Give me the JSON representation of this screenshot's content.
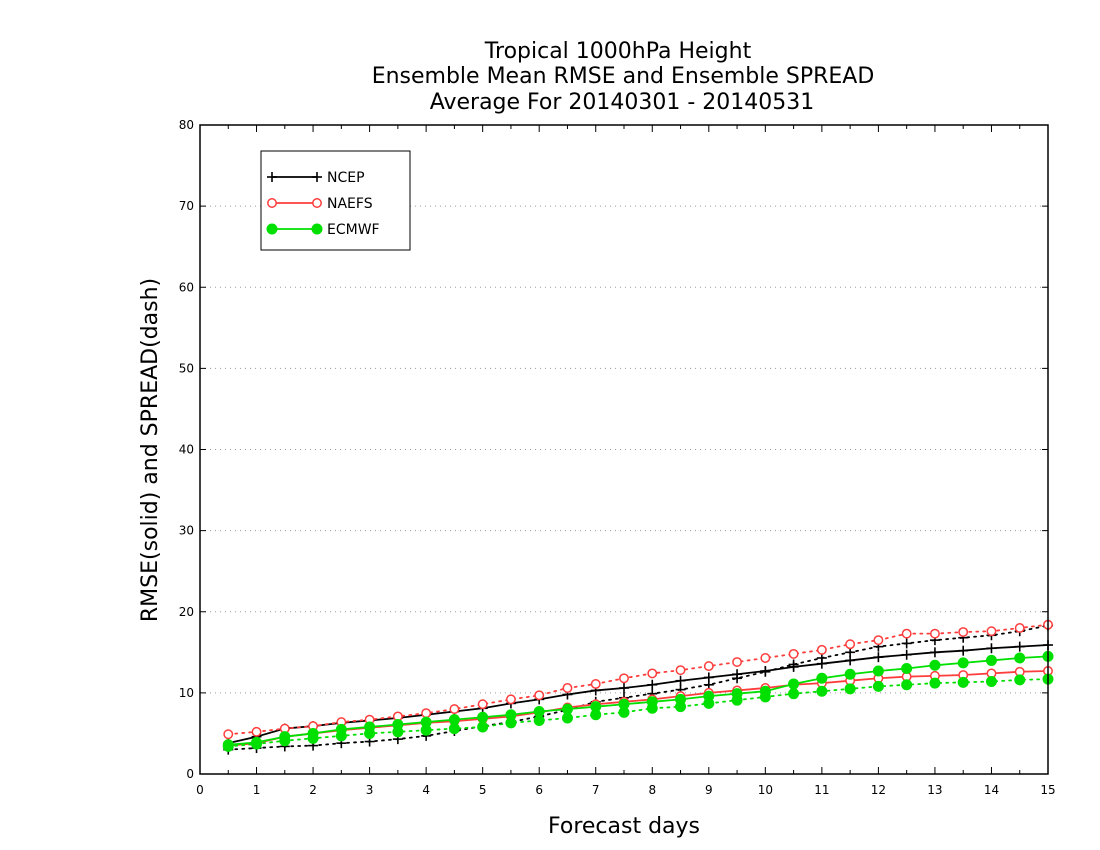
{
  "chart_data": {
    "type": "line",
    "title": [
      "Tropical 1000hPa Height",
      "Ensemble Mean RMSE and Ensemble SPREAD",
      "Average For 20140301 - 20140531"
    ],
    "xlabel": "Forecast days",
    "ylabel": "RMSE(solid) and SPREAD(dash)",
    "xlim": [
      0,
      15
    ],
    "ylim": [
      0,
      80
    ],
    "xticks": [
      "0",
      "1",
      "2",
      "3",
      "4",
      "5",
      "6",
      "7",
      "8",
      "9",
      "10",
      "11",
      "12",
      "13",
      "14",
      "15"
    ],
    "yticks": [
      "0",
      "10",
      "20",
      "30",
      "40",
      "50",
      "60",
      "70",
      "80"
    ],
    "grid": "horizontal dotted",
    "legend_position": "top-left",
    "x": [
      0.5,
      1,
      1.5,
      2,
      2.5,
      3,
      3.5,
      4,
      4.5,
      5,
      5.5,
      6,
      6.5,
      7,
      7.5,
      8,
      8.5,
      9,
      9.5,
      10,
      10.5,
      11,
      11.5,
      12,
      12.5,
      13,
      13.5,
      14,
      14.5,
      15
    ],
    "series": [
      {
        "name": "NCEP",
        "color": "#000000",
        "marker": "plus",
        "rmse": [
          3.8,
          4.6,
          5.6,
          5.9,
          6.3,
          6.6,
          6.9,
          7.3,
          7.7,
          8.1,
          8.7,
          9.2,
          9.8,
          10.3,
          10.6,
          11.0,
          11.5,
          11.9,
          12.3,
          12.7,
          13.2,
          13.6,
          14.0,
          14.4,
          14.7,
          15.0,
          15.2,
          15.5,
          15.7,
          15.9
        ],
        "spread": [
          3.0,
          3.2,
          3.4,
          3.5,
          3.8,
          4.0,
          4.3,
          4.7,
          5.3,
          5.9,
          6.4,
          7.1,
          7.9,
          8.9,
          9.4,
          9.9,
          10.4,
          11.0,
          11.8,
          12.6,
          13.5,
          14.3,
          15.0,
          15.7,
          16.1,
          16.5,
          16.8,
          17.1,
          17.6,
          18.3
        ]
      },
      {
        "name": "NAEFS",
        "color": "#ff3c3c",
        "marker": "open-circle",
        "rmse": [
          3.5,
          3.8,
          4.6,
          5.0,
          5.4,
          5.7,
          6.0,
          6.3,
          6.5,
          6.8,
          7.1,
          7.6,
          8.2,
          8.6,
          8.9,
          9.2,
          9.6,
          10.0,
          10.3,
          10.6,
          11.0,
          11.2,
          11.5,
          11.8,
          12.0,
          12.1,
          12.2,
          12.4,
          12.6,
          12.7
        ],
        "spread": [
          4.9,
          5.2,
          5.6,
          5.9,
          6.4,
          6.7,
          7.1,
          7.5,
          8.0,
          8.6,
          9.2,
          9.7,
          10.6,
          11.1,
          11.8,
          12.4,
          12.8,
          13.3,
          13.8,
          14.3,
          14.8,
          15.3,
          16.0,
          16.5,
          17.3,
          17.3,
          17.5,
          17.6,
          18.0,
          18.4
        ]
      },
      {
        "name": "ECMWF",
        "color": "#00e000",
        "marker": "filled-circle",
        "rmse": [
          3.6,
          3.9,
          4.6,
          5.0,
          5.5,
          5.8,
          6.1,
          6.4,
          6.7,
          7.0,
          7.3,
          7.7,
          8.0,
          8.3,
          8.6,
          8.9,
          9.2,
          9.6,
          9.9,
          10.2,
          11.1,
          11.8,
          12.3,
          12.7,
          13.0,
          13.4,
          13.7,
          14.0,
          14.3,
          14.5
        ],
        "spread": [
          3.4,
          3.7,
          4.1,
          4.4,
          4.7,
          5.0,
          5.2,
          5.4,
          5.6,
          5.8,
          6.3,
          6.6,
          6.9,
          7.3,
          7.6,
          8.1,
          8.3,
          8.7,
          9.1,
          9.5,
          9.9,
          10.2,
          10.5,
          10.8,
          11.0,
          11.2,
          11.3,
          11.4,
          11.6,
          11.7
        ]
      }
    ]
  }
}
